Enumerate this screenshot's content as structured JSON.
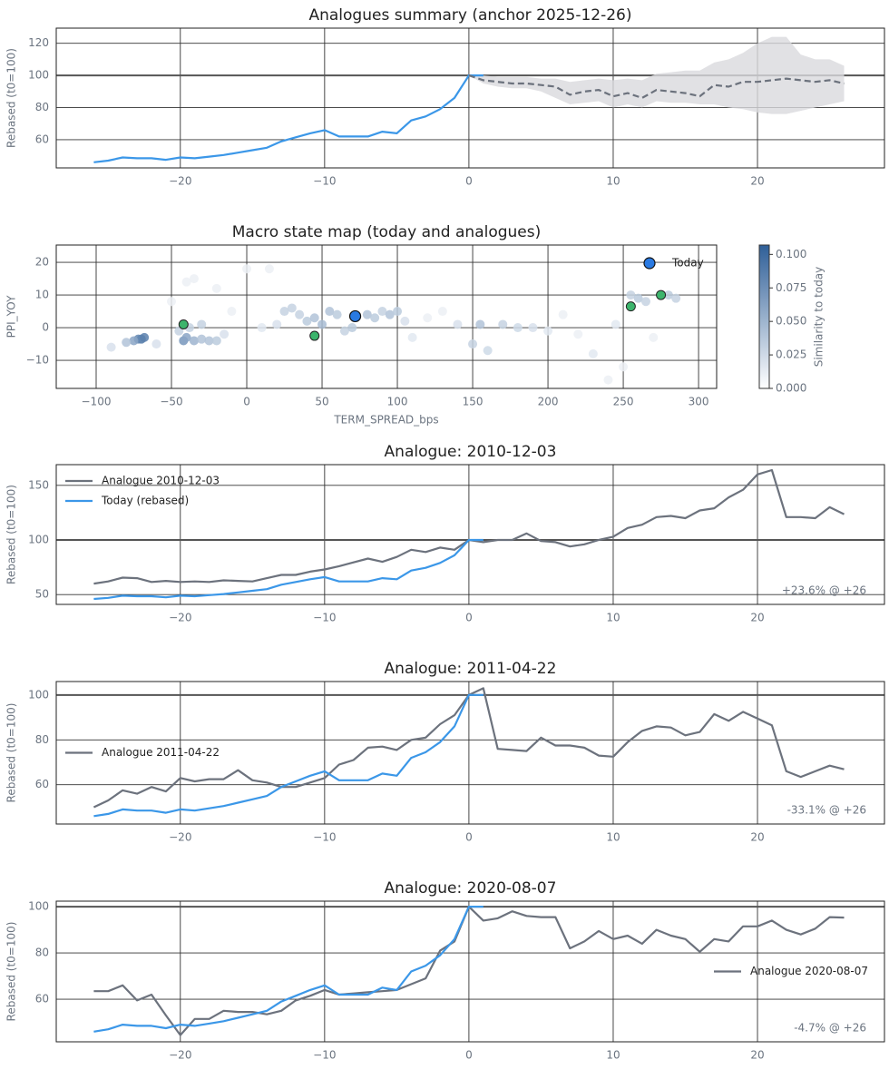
{
  "chart_data": [
    {
      "type": "line",
      "title": "Analogues summary (anchor 2025-12-26)",
      "ylabel": "Rebased (t0=100)",
      "xlim": [
        -28.6,
        28.8
      ],
      "xticks": [
        {
          "value": -20,
          "label": "−20"
        },
        {
          "value": -10,
          "label": "−10"
        },
        0,
        10,
        20
      ],
      "ylim": [
        42.5,
        129.4
      ],
      "yticks": [
        60,
        80,
        100,
        120
      ],
      "grid": true,
      "hline": 100,
      "band": {
        "color": "#d9dadd",
        "x": [
          0,
          1,
          2,
          3,
          4,
          5,
          6,
          7,
          8,
          9,
          10,
          11,
          12,
          13,
          14,
          15,
          16,
          17,
          18,
          19,
          20,
          21,
          22,
          23,
          24,
          25,
          26
        ],
        "lower": [
          100,
          95,
          93,
          92,
          92,
          90,
          86,
          82,
          83,
          84,
          80,
          82,
          80,
          84,
          83,
          83,
          82,
          82,
          80,
          79,
          77,
          76,
          76,
          78,
          80,
          82,
          84
        ],
        "upper": [
          100,
          100,
          99,
          99,
          99,
          98,
          98,
          96,
          97,
          98,
          97,
          98,
          97,
          101,
          102,
          103,
          103,
          108,
          110,
          114,
          120,
          124,
          124,
          113,
          110,
          110,
          106
        ]
      },
      "series": [
        {
          "color": "#3b97e8",
          "x": [
            -26,
            -25,
            -24,
            -23,
            -22,
            -21,
            -20,
            -19,
            -18,
            -17,
            -16,
            -15,
            -14,
            -13,
            -12,
            -11,
            -10,
            -9,
            -8,
            -7,
            -6,
            -5,
            -4,
            -3,
            -2,
            -1,
            0,
            1
          ],
          "values": [
            46,
            47,
            49,
            48.5,
            48.5,
            47.5,
            49,
            48.5,
            49.5,
            50.5,
            52,
            53.5,
            55,
            59,
            61.5,
            64,
            66,
            62,
            62,
            62,
            65,
            64,
            72,
            74.5,
            79,
            86,
            100,
            100
          ]
        },
        {
          "color": "#6c727d",
          "dash": true,
          "x": [
            0,
            1,
            2,
            3,
            4,
            5,
            6,
            7,
            8,
            9,
            10,
            11,
            12,
            13,
            14,
            15,
            16,
            17,
            18,
            19,
            20,
            21,
            22,
            23,
            24,
            25,
            26
          ],
          "values": [
            100,
            97,
            96,
            95,
            95,
            94,
            93,
            88,
            90,
            91,
            87,
            89,
            86,
            91,
            90,
            89,
            87,
            94,
            93,
            96,
            96,
            97,
            98,
            97,
            96,
            97,
            95
          ]
        }
      ]
    },
    {
      "type": "scatter",
      "title": "Macro state map (today and analogues)",
      "xlabel": "TERM_SPREAD_bps",
      "ylabel": "PPI_YOY",
      "xlim": [
        -126.5,
        312
      ],
      "xticks": [
        {
          "value": -100,
          "label": "−100"
        },
        {
          "value": -50,
          "label": "−50"
        },
        0,
        50,
        100,
        150,
        200,
        250,
        300
      ],
      "ylim": [
        -18.6,
        25.3
      ],
      "yticks": [
        {
          "value": -10,
          "label": "−10"
        },
        0,
        10,
        20
      ],
      "grid": true,
      "points": {
        "x": [
          -70,
          -72,
          -68,
          -75,
          -80,
          -90,
          -60,
          -42,
          -40,
          -35,
          -30,
          -25,
          -20,
          -45,
          -38,
          -30,
          -50,
          -40,
          -35,
          -20,
          -10,
          0,
          10,
          20,
          25,
          30,
          35,
          40,
          45,
          50,
          55,
          60,
          65,
          70,
          80,
          85,
          90,
          95,
          100,
          105,
          110,
          120,
          130,
          140,
          150,
          155,
          160,
          170,
          180,
          190,
          200,
          210,
          220,
          230,
          240,
          250,
          255,
          260,
          265,
          280,
          285,
          270,
          245,
          15,
          -15
        ],
        "y": [
          -3.5,
          -3.5,
          -3,
          -4,
          -4.5,
          -6,
          -5,
          -4,
          -3,
          -4,
          -3.5,
          -4,
          -4,
          -1,
          0,
          1,
          8,
          14,
          15,
          12,
          5,
          18,
          0,
          1,
          5,
          6,
          4,
          2,
          3,
          1,
          5,
          4,
          -1,
          0,
          4,
          3,
          5,
          4,
          5,
          2,
          -3,
          3,
          5,
          1,
          -5,
          1,
          -7,
          1,
          0,
          0,
          -1,
          4,
          -2,
          -8,
          -16,
          -12,
          10,
          9,
          8,
          10,
          9,
          -3,
          1,
          18,
          -2
        ],
        "similarity": [
          0.09,
          0.08,
          0.085,
          0.06,
          0.04,
          0.02,
          0.02,
          0.07,
          0.06,
          0.05,
          0.04,
          0.04,
          0.035,
          0.03,
          0.03,
          0.03,
          0.01,
          0.01,
          0.01,
          0.01,
          0.01,
          0.01,
          0.015,
          0.02,
          0.03,
          0.03,
          0.03,
          0.035,
          0.04,
          0.045,
          0.04,
          0.035,
          0.03,
          0.035,
          0.04,
          0.035,
          0.03,
          0.04,
          0.035,
          0.02,
          0.015,
          0.01,
          0.01,
          0.02,
          0.03,
          0.04,
          0.025,
          0.03,
          0.025,
          0.02,
          0.015,
          0.01,
          0.01,
          0.015,
          0.01,
          0.01,
          0.03,
          0.035,
          0.03,
          0.035,
          0.03,
          0.01,
          0.015,
          0.01,
          0.02
        ]
      },
      "analogues": {
        "color": "#3cb46c",
        "x": [
          -42,
          45,
          255,
          275
        ],
        "y": [
          1,
          -2.5,
          6.5,
          10
        ]
      },
      "today": {
        "name": "Today",
        "color": "#2a7ae2",
        "x": 72,
        "y": 3.5
      },
      "colorbar": {
        "label": "Similarity to today",
        "colors": [
          "#ffffff",
          "#2f5f98"
        ],
        "lim": [
          0,
          0.107
        ],
        "ticks": [
          {
            "value": 0,
            "label": "0.000"
          },
          {
            "value": 0.025,
            "label": "0.025"
          },
          {
            "value": 0.05,
            "label": "0.050"
          },
          {
            "value": 0.075,
            "label": "0.075"
          },
          {
            "value": 0.1,
            "label": "0.100"
          }
        ]
      }
    },
    {
      "type": "line",
      "title": "Analogue: 2010-12-03",
      "ylabel": "Rebased (t0=100)",
      "xlim": [
        -28.6,
        28.8
      ],
      "xticks": [
        {
          "value": -20,
          "label": "−20"
        },
        {
          "value": -10,
          "label": "−10"
        },
        0,
        10,
        20
      ],
      "ylim": [
        41,
        169
      ],
      "yticks": [
        50,
        100,
        150
      ],
      "grid": true,
      "hline": 100,
      "legend": "upper left",
      "annotation": "+23.6% @ +26",
      "series": [
        {
          "name": "Analogue 2010-12-03",
          "color": "#6c727d",
          "x": [
            -26,
            -25,
            -24,
            -23,
            -22,
            -21,
            -20,
            -19,
            -18,
            -17,
            -16,
            -15,
            -14,
            -13,
            -12,
            -11,
            -10,
            -9,
            -8,
            -7,
            -6,
            -5,
            -4,
            -3,
            -2,
            -1,
            0,
            1,
            2,
            3,
            4,
            5,
            6,
            7,
            8,
            9,
            10,
            11,
            12,
            13,
            14,
            15,
            16,
            17,
            18,
            19,
            20,
            21,
            22,
            23,
            24,
            25,
            26
          ],
          "values": [
            60,
            62,
            65.5,
            65,
            61.5,
            62.5,
            61.5,
            62,
            61.5,
            63,
            62.5,
            62,
            65,
            68,
            68,
            71,
            73,
            76,
            79.5,
            83,
            80,
            84.5,
            91,
            89,
            93,
            91,
            100,
            98,
            100,
            100,
            106,
            99,
            98,
            94,
            96,
            100,
            103,
            111,
            114,
            121,
            122,
            120,
            127,
            129,
            139,
            146,
            160,
            164,
            121,
            121,
            120,
            130,
            123.6
          ]
        },
        {
          "name": "Today (rebased)",
          "color": "#3b97e8",
          "x": [
            -26,
            -25,
            -24,
            -23,
            -22,
            -21,
            -20,
            -19,
            -18,
            -17,
            -16,
            -15,
            -14,
            -13,
            -12,
            -11,
            -10,
            -9,
            -8,
            -7,
            -6,
            -5,
            -4,
            -3,
            -2,
            -1,
            0,
            1
          ],
          "values": [
            46,
            47,
            49,
            48.5,
            48.5,
            47.5,
            49,
            48.5,
            49.5,
            50.5,
            52,
            53.5,
            55,
            59,
            61.5,
            64,
            66,
            62,
            62,
            62,
            65,
            64,
            72,
            74.5,
            79,
            86,
            100,
            100
          ]
        }
      ]
    },
    {
      "type": "line",
      "title": "Analogue: 2011-04-22",
      "ylabel": "Rebased (t0=100)",
      "xlim": [
        -28.6,
        28.8
      ],
      "xticks": [
        {
          "value": -20,
          "label": "−20"
        },
        {
          "value": -10,
          "label": "−10"
        },
        0,
        10,
        20
      ],
      "ylim": [
        42.5,
        106
      ],
      "yticks": [
        60,
        80,
        100
      ],
      "grid": true,
      "hline": 100,
      "legend": "center left",
      "annotation": "-33.1% @ +26",
      "series": [
        {
          "name": "Analogue 2011-04-22",
          "color": "#6c727d",
          "x": [
            -26,
            -25,
            -24,
            -23,
            -22,
            -21,
            -20,
            -19,
            -18,
            -17,
            -16,
            -15,
            -14,
            -13,
            -12,
            -11,
            -10,
            -9,
            -8,
            -7,
            -6,
            -5,
            -4,
            -3,
            -2,
            -1,
            0,
            1,
            2,
            3,
            4,
            5,
            6,
            7,
            8,
            9,
            10,
            11,
            12,
            13,
            14,
            15,
            16,
            17,
            18,
            19,
            20,
            21,
            22,
            23,
            24,
            25,
            26
          ],
          "values": [
            50,
            53,
            57.5,
            56,
            59,
            57,
            63,
            61.5,
            62.5,
            62.5,
            66.5,
            62,
            61,
            59,
            59,
            61,
            63,
            69,
            71,
            76.5,
            77,
            75.5,
            80,
            81,
            87,
            91,
            100,
            103,
            76,
            75.5,
            75,
            81,
            77.5,
            77.5,
            76.5,
            73,
            72.5,
            79,
            84,
            86,
            85.5,
            82,
            83.5,
            91.5,
            88.5,
            92.5,
            89.5,
            86.5,
            66,
            63.5,
            66,
            68.5,
            66.9
          ]
        },
        {
          "color": "#3b97e8",
          "x": [
            -26,
            -25,
            -24,
            -23,
            -22,
            -21,
            -20,
            -19,
            -18,
            -17,
            -16,
            -15,
            -14,
            -13,
            -12,
            -11,
            -10,
            -9,
            -8,
            -7,
            -6,
            -5,
            -4,
            -3,
            -2,
            -1,
            0,
            1
          ],
          "values": [
            46,
            47,
            49,
            48.5,
            48.5,
            47.5,
            49,
            48.5,
            49.5,
            50.5,
            52,
            53.5,
            55,
            59,
            61.5,
            64,
            66,
            62,
            62,
            62,
            65,
            64,
            72,
            74.5,
            79,
            86,
            100,
            100
          ]
        }
      ]
    },
    {
      "type": "line",
      "title": "Analogue: 2020-08-07",
      "ylabel": "Rebased (t0=100)",
      "xlim": [
        -28.6,
        28.8
      ],
      "xticks": [
        {
          "value": -20,
          "label": "−20"
        },
        {
          "value": -10,
          "label": "−10"
        },
        0,
        10,
        20
      ],
      "ylim": [
        41.6,
        102.4
      ],
      "yticks": [
        60,
        80,
        100
      ],
      "grid": true,
      "hline": 100,
      "legend": "center right",
      "annotation": "-4.7% @ +26",
      "series": [
        {
          "name": "Analogue 2020-08-07",
          "color": "#6c727d",
          "x": [
            -26,
            -25,
            -24,
            -23,
            -22,
            -21,
            -20,
            -19,
            -18,
            -17,
            -16,
            -15,
            -14,
            -13,
            -12,
            -11,
            -10,
            -9,
            -8,
            -7,
            -6,
            -5,
            -4,
            -3,
            -2,
            -1,
            0,
            1,
            2,
            3,
            4,
            5,
            6,
            7,
            8,
            9,
            10,
            11,
            12,
            13,
            14,
            15,
            16,
            17,
            18,
            19,
            20,
            21,
            22,
            23,
            24,
            25,
            26
          ],
          "values": [
            63.5,
            63.5,
            66,
            59.5,
            62,
            53,
            44.5,
            51.5,
            51.5,
            55,
            54.5,
            54.5,
            53.5,
            55,
            59.5,
            61.5,
            64,
            62,
            62.5,
            63,
            63.5,
            64,
            66.5,
            69,
            81,
            85,
            100,
            94,
            95,
            98,
            96,
            95.5,
            95.5,
            82,
            85,
            89.5,
            86,
            87.5,
            84,
            90,
            87.5,
            86,
            80.5,
            86,
            85,
            91.5,
            91.5,
            94,
            90,
            88,
            90.5,
            95.5,
            95.3
          ]
        },
        {
          "color": "#3b97e8",
          "x": [
            -26,
            -25,
            -24,
            -23,
            -22,
            -21,
            -20,
            -19,
            -18,
            -17,
            -16,
            -15,
            -14,
            -13,
            -12,
            -11,
            -10,
            -9,
            -8,
            -7,
            -6,
            -5,
            -4,
            -3,
            -2,
            -1,
            0,
            1
          ],
          "values": [
            46,
            47,
            49,
            48.5,
            48.5,
            47.5,
            49,
            48.5,
            49.5,
            50.5,
            52,
            53.5,
            55,
            59,
            61.5,
            64,
            66,
            62,
            62,
            62,
            65,
            64,
            72,
            74.5,
            79,
            86,
            100,
            100
          ]
        }
      ]
    }
  ]
}
